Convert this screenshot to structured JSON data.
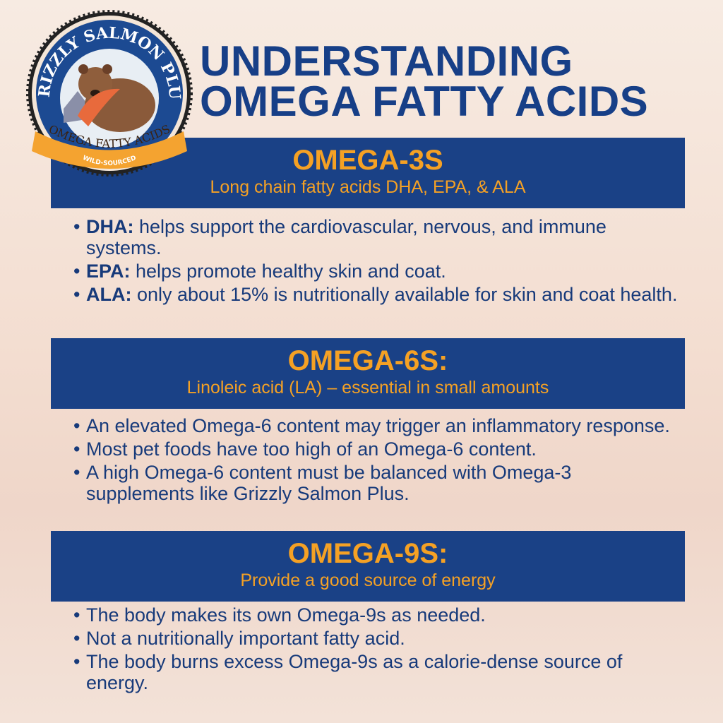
{
  "logo": {
    "top_text": "GRIZZLY SALMON PLUS",
    "banner_text": "OMEGA FATTY ACIDS",
    "bottom_text": "WILD-SOURCED"
  },
  "title": {
    "line1": "UNDERSTANDING",
    "line2": "OMEGA FATTY ACIDS"
  },
  "sections": [
    {
      "heading": "OMEGA-3S",
      "subheading": "Long chain fatty acids DHA, EPA, & ALA",
      "bullets": [
        {
          "term": "DHA:",
          "text": " helps support the cardiovascular, nervous, and immune systems."
        },
        {
          "term": "EPA:",
          "text": " helps promote healthy skin and coat."
        },
        {
          "term": "ALA:",
          "text": " only about 15% is nutritionally available for skin and coat health."
        }
      ]
    },
    {
      "heading": "OMEGA-6S:",
      "subheading": "Linoleic acid (LA) – essential in small amounts",
      "bullets": [
        {
          "term": "",
          "text": "An elevated Omega-6 content may trigger an inflammatory response."
        },
        {
          "term": "",
          "text": "Most pet foods have too high of an Omega-6 content."
        },
        {
          "term": "",
          "text": "A high Omega-6 content must be balanced with Omega-3 supplements like Grizzly Salmon Plus."
        }
      ]
    },
    {
      "heading": "OMEGA-9S:",
      "subheading": "Provide a good source of energy",
      "bullets": [
        {
          "term": "",
          "text": "The body makes its own Omega-9s as needed."
        },
        {
          "term": "",
          "text": "Not a nutritionally important fatty acid."
        },
        {
          "term": "",
          "text": "The body burns excess Omega-9s as a calorie-dense source of energy."
        }
      ]
    }
  ],
  "colors": {
    "navy": "#1a4186",
    "orange": "#f5a124",
    "text": "#173a7a"
  }
}
